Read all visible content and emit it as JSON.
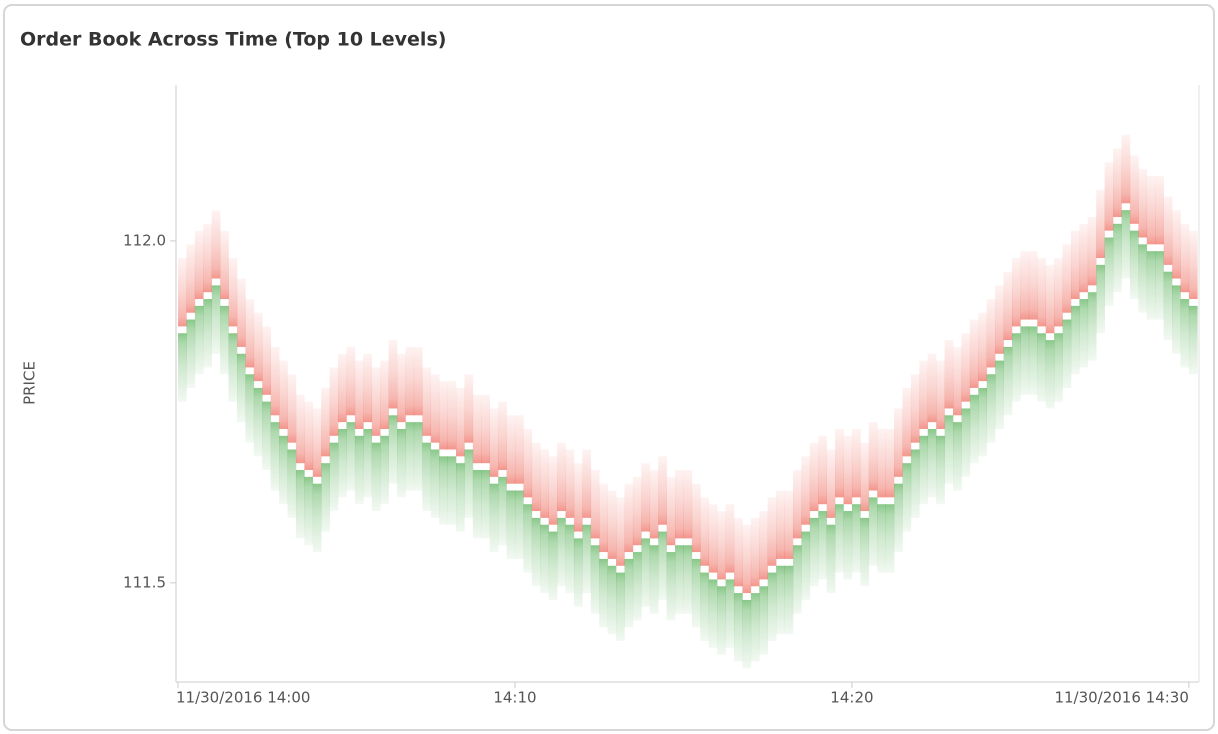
{
  "chart_data": {
    "type": "orderbook",
    "title": "Order Book Across Time (Top 10 Levels)",
    "y_label": "PRICE",
    "x": [
      0,
      0.25,
      0.5,
      0.75,
      1,
      1.25,
      1.5,
      1.75,
      2,
      2.25,
      2.5,
      2.75,
      3,
      3.25,
      3.5,
      3.75,
      4,
      4.25,
      4.5,
      4.75,
      5,
      5.25,
      5.5,
      5.75,
      6,
      6.25,
      6.5,
      6.75,
      7,
      7.25,
      7.5,
      7.75,
      8,
      8.25,
      8.5,
      8.75,
      9,
      9.25,
      9.5,
      9.75,
      10,
      10.25,
      10.5,
      10.75,
      11,
      11.25,
      11.5,
      11.75,
      12,
      12.25,
      12.5,
      12.75,
      13,
      13.25,
      13.5,
      13.75,
      14,
      14.25,
      14.5,
      14.75,
      15,
      15.25,
      15.5,
      15.75,
      16,
      16.25,
      16.5,
      16.75,
      17,
      17.25,
      17.5,
      17.75,
      18,
      18.25,
      18.5,
      18.75,
      19,
      19.25,
      19.5,
      19.75,
      20,
      20.25,
      20.5,
      20.75,
      21,
      21.25,
      21.5,
      21.75,
      22,
      22.25,
      22.5,
      22.75,
      23,
      23.25,
      23.5,
      23.75,
      24,
      24.25,
      24.5,
      24.75,
      25,
      25.25,
      25.5,
      25.75,
      26,
      26.25,
      26.5,
      26.75,
      27,
      27.25,
      27.5,
      27.75,
      28,
      28.25,
      28.5,
      28.75,
      29,
      29.25,
      29.5,
      29.75,
      30
    ],
    "series": [
      {
        "color": "#e8402f",
        "values": [
          111.88,
          111.9,
          111.92,
          111.93,
          111.95,
          111.92,
          111.88,
          111.85,
          111.82,
          111.8,
          111.78,
          111.75,
          111.73,
          111.71,
          111.68,
          111.67,
          111.66,
          111.69,
          111.72,
          111.74,
          111.75,
          111.73,
          111.74,
          111.72,
          111.73,
          111.76,
          111.74,
          111.75,
          111.75,
          111.72,
          111.71,
          111.7,
          111.7,
          111.69,
          111.71,
          111.68,
          111.68,
          111.66,
          111.67,
          111.65,
          111.65,
          111.63,
          111.61,
          111.6,
          111.59,
          111.61,
          111.6,
          111.58,
          111.6,
          111.57,
          111.55,
          111.54,
          111.53,
          111.55,
          111.56,
          111.58,
          111.57,
          111.59,
          111.56,
          111.57,
          111.57,
          111.55,
          111.53,
          111.52,
          111.51,
          111.52,
          111.5,
          111.49,
          111.5,
          111.51,
          111.53,
          111.54,
          111.54,
          111.57,
          111.59,
          111.61,
          111.62,
          111.6,
          111.63,
          111.62,
          111.63,
          111.61,
          111.64,
          111.63,
          111.63,
          111.66,
          111.69,
          111.71,
          111.73,
          111.74,
          111.73,
          111.76,
          111.75,
          111.77,
          111.79,
          111.8,
          111.82,
          111.84,
          111.86,
          111.88,
          111.89,
          111.89,
          111.88,
          111.87,
          111.88,
          111.9,
          111.92,
          111.93,
          111.94,
          111.98,
          112.02,
          112.04,
          112.06,
          112.03,
          112.01,
          112.0,
          112.0,
          111.97,
          111.95,
          111.93,
          111.92
        ]
      },
      {
        "color": "#2a9a2a",
        "values": [
          111.86,
          111.88,
          111.9,
          111.91,
          111.93,
          111.9,
          111.86,
          111.83,
          111.8,
          111.78,
          111.76,
          111.73,
          111.71,
          111.69,
          111.66,
          111.65,
          111.64,
          111.67,
          111.7,
          111.72,
          111.73,
          111.71,
          111.72,
          111.7,
          111.71,
          111.74,
          111.72,
          111.73,
          111.73,
          111.7,
          111.69,
          111.68,
          111.68,
          111.67,
          111.69,
          111.66,
          111.66,
          111.64,
          111.65,
          111.63,
          111.63,
          111.61,
          111.59,
          111.58,
          111.57,
          111.59,
          111.58,
          111.56,
          111.58,
          111.55,
          111.53,
          111.52,
          111.51,
          111.53,
          111.54,
          111.56,
          111.55,
          111.57,
          111.54,
          111.55,
          111.55,
          111.53,
          111.51,
          111.5,
          111.49,
          111.5,
          111.48,
          111.47,
          111.48,
          111.49,
          111.51,
          111.52,
          111.52,
          111.55,
          111.57,
          111.59,
          111.6,
          111.58,
          111.61,
          111.6,
          111.61,
          111.59,
          111.62,
          111.61,
          111.61,
          111.64,
          111.67,
          111.69,
          111.71,
          111.72,
          111.71,
          111.74,
          111.73,
          111.75,
          111.77,
          111.78,
          111.8,
          111.82,
          111.84,
          111.86,
          111.87,
          111.87,
          111.86,
          111.85,
          111.86,
          111.88,
          111.9,
          111.91,
          111.92,
          111.96,
          112.0,
          112.02,
          112.04,
          112.01,
          111.99,
          111.98,
          111.98,
          111.95,
          111.93,
          111.91,
          111.9
        ]
      }
    ],
    "xlim": [
      0,
      30.3
    ],
    "xticks": [
      {
        "value": 0,
        "label": "11/30/2016 14:00"
      },
      {
        "value": 10,
        "label": "14:10"
      },
      {
        "value": 20,
        "label": "14:20"
      },
      {
        "value": 30,
        "label": "11/30/2016 14:30"
      }
    ],
    "ylim": [
      111.355,
      112.228
    ],
    "yticks": [
      111.5,
      {
        "value": 112,
        "label": "112.0"
      }
    ]
  }
}
